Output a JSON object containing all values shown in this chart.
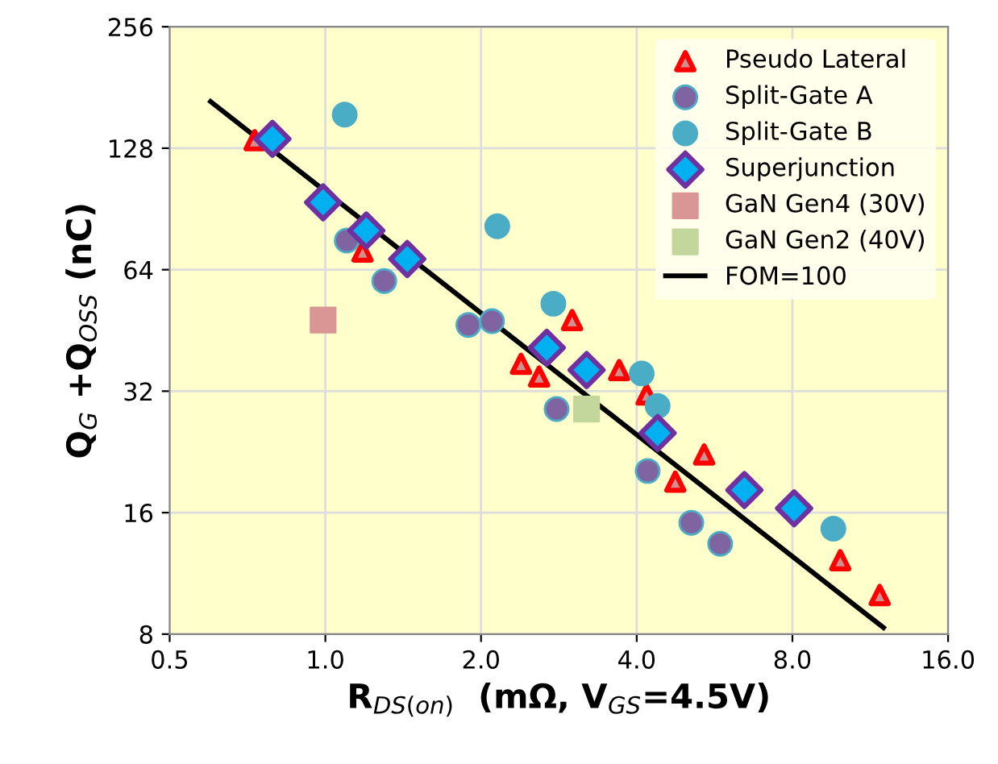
{
  "chart_data": {
    "type": "scatter",
    "xlabel": "R$_{DS(on)}$  (mΩ, V$_{GS}$=4.5V)",
    "ylabel": "Q$_{G}$ +Q$_{OSS}$ (nC)",
    "log": "xy",
    "xlim": [
      0.5,
      16
    ],
    "ylim": [
      8,
      256
    ],
    "xticks": [
      0.5,
      {
        "value": 1,
        "label": "1.0"
      },
      {
        "value": 2,
        "label": "2.0"
      },
      {
        "value": 4,
        "label": "4.0"
      },
      {
        "value": 8,
        "label": "8.0"
      },
      {
        "value": 16,
        "label": "16.0"
      }
    ],
    "yticks": [
      8,
      16,
      32,
      64,
      128,
      256
    ],
    "grid": true,
    "legend": "top right",
    "series": [
      {
        "name": "Pseudo Lateral",
        "color": "#ff0000",
        "marker": "triangle",
        "x": [
          0.73,
          1.18,
          2.39,
          2.59,
          3.0,
          3.7,
          4.18,
          4.75,
          5.4,
          9.9,
          11.8
        ],
        "values": [
          134,
          71,
          37.4,
          34.8,
          48,
          36.1,
          31.4,
          19.1,
          22.3,
          12.2,
          10.0
        ]
      },
      {
        "name": "Split-Gate A",
        "color": "#8064a2",
        "marker": "circle",
        "x": [
          1.1,
          1.3,
          1.89,
          2.1,
          2.8,
          4.2,
          5.1,
          5.8
        ],
        "values": [
          75.6,
          60,
          46.7,
          47.7,
          28.9,
          20.3,
          15.1,
          13.4
        ]
      },
      {
        "name": "Split-Gate B",
        "color": "#4bacc6",
        "marker": "circle",
        "x": [
          1.09,
          2.15,
          2.76,
          4.09,
          4.39,
          9.6
        ],
        "values": [
          155,
          82,
          52.7,
          35.4,
          29.4,
          14.6
        ]
      },
      {
        "name": "Superjunction",
        "color": "#7030a0",
        "marker": "diamond",
        "x": [
          0.79,
          0.99,
          1.2,
          1.44,
          2.68,
          3.2,
          4.39,
          6.46,
          8.06
        ],
        "values": [
          135,
          94,
          80,
          68,
          41,
          36.1,
          25.2,
          18.2,
          16.4
        ]
      },
      {
        "name": "GaN Gen4 (30V)",
        "color": "#d99694",
        "marker": "square",
        "x": [
          0.99
        ],
        "values": [
          48
        ]
      },
      {
        "name": "GaN Gen2 (40V)",
        "color": "#c3d69b",
        "marker": "square",
        "x": [
          3.2
        ],
        "values": [
          28.9
        ]
      },
      {
        "name": "FOM=100",
        "type": "line",
        "color": "#000000",
        "marker": "none",
        "x": [
          0.6,
          12.0
        ],
        "values": [
          167,
          8.3
        ]
      }
    ]
  }
}
